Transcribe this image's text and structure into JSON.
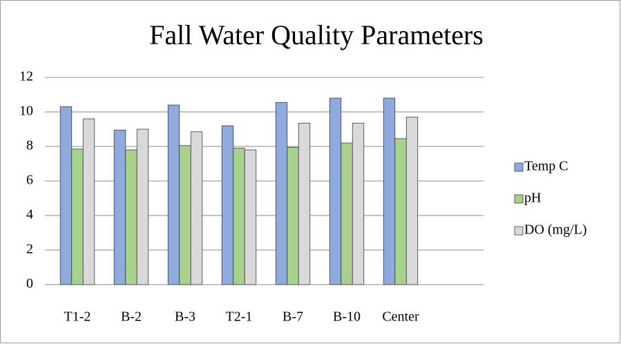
{
  "chart_data": {
    "type": "bar",
    "title": "Fall Water Quality Parameters",
    "categories": [
      "T1-2",
      "B-2",
      "B-3",
      "T2-1",
      "B-7",
      "B-10",
      "Center"
    ],
    "series": [
      {
        "name": "Temp C",
        "color": "#8faadc",
        "values": [
          10.3,
          8.95,
          10.4,
          9.2,
          10.55,
          10.8,
          10.8
        ]
      },
      {
        "name": "pH",
        "color": "#a9d18e",
        "values": [
          7.85,
          7.8,
          8.05,
          7.9,
          7.95,
          8.2,
          8.45
        ]
      },
      {
        "name": "DO (mg/L)",
        "color": "#d9d9d9",
        "values": [
          9.6,
          9.0,
          8.85,
          7.8,
          9.35,
          9.35,
          9.7
        ]
      }
    ],
    "ylim": [
      0,
      12
    ],
    "yticks": [
      0,
      2,
      4,
      6,
      8,
      10,
      12
    ],
    "grid": true,
    "legend": "right"
  }
}
